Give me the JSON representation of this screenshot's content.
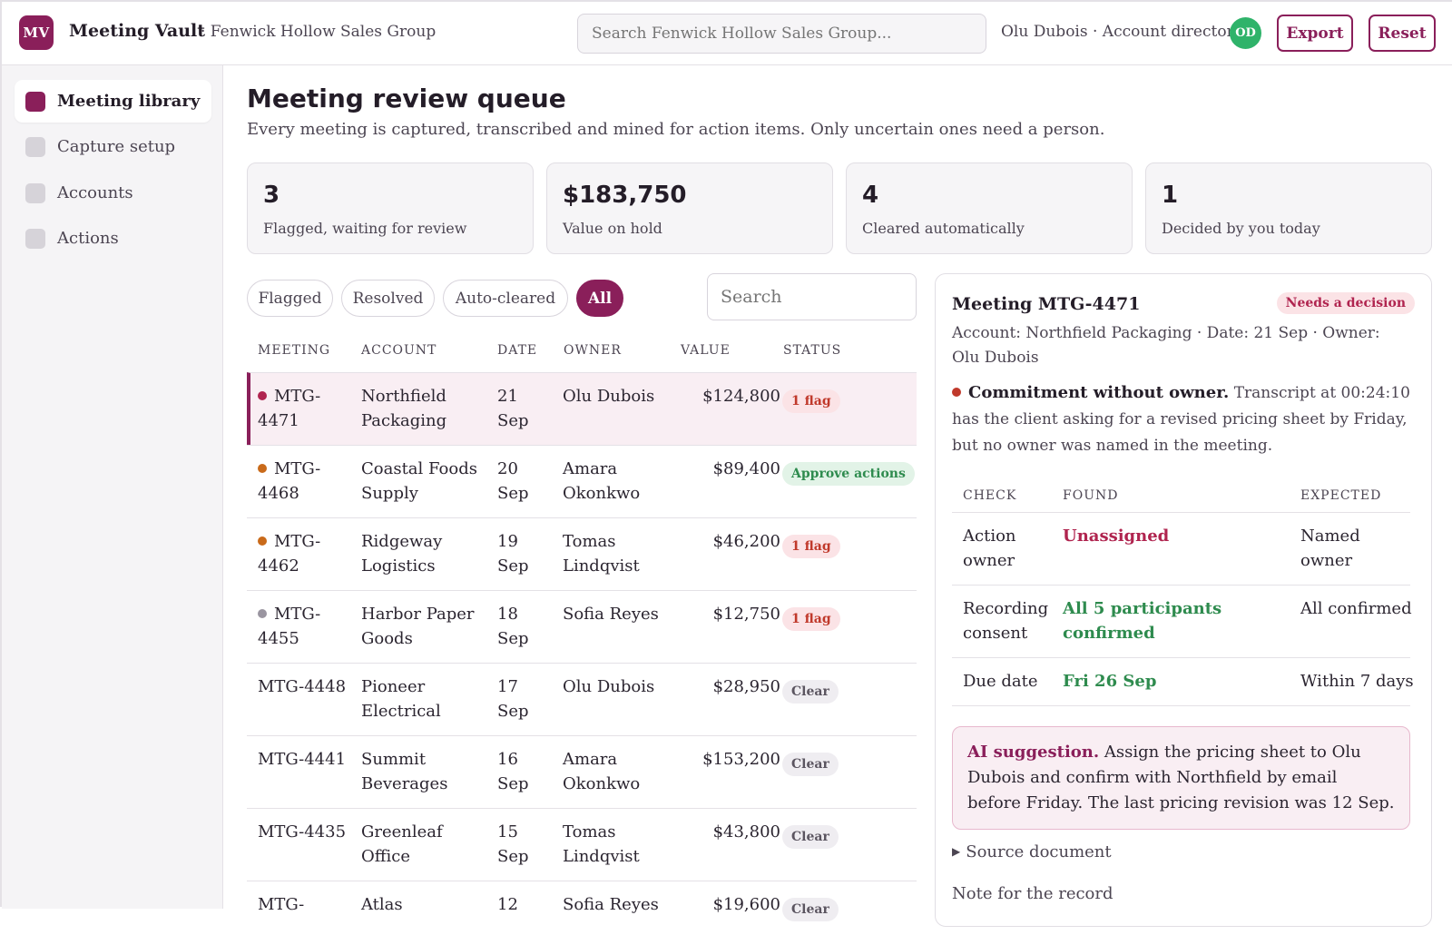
{
  "header": {
    "logo_text": "MV",
    "app_name": "Meeting Vault",
    "org_name": "· Fenwick Hollow Sales Group",
    "search_placeholder": "Search Fenwick Hollow Sales Group...",
    "user_label": "Olu Dubois · Account director",
    "avatar_initials": "OD",
    "export_label": "Export",
    "reset_label": "Reset"
  },
  "sidebar": {
    "items": [
      {
        "label": "Meeting library",
        "active": true
      },
      {
        "label": "Capture setup",
        "active": false
      },
      {
        "label": "Accounts",
        "active": false
      },
      {
        "label": "Actions",
        "active": false
      }
    ]
  },
  "main": {
    "title": "Meeting review queue",
    "subtitle": "Every meeting is captured, transcribed and mined for action items. Only uncertain ones need a person.",
    "stats": [
      {
        "value": "3",
        "label": "Flagged, waiting for review"
      },
      {
        "value": "$183,750",
        "label": "Value on hold"
      },
      {
        "value": "4",
        "label": "Cleared automatically"
      },
      {
        "value": "1",
        "label": "Decided by you today"
      }
    ],
    "filters": [
      {
        "label": "Flagged",
        "active": false
      },
      {
        "label": "Resolved",
        "active": false
      },
      {
        "label": "Auto-cleared",
        "active": false
      },
      {
        "label": "All",
        "active": true
      }
    ],
    "search_placeholder": "Search",
    "table": {
      "columns": [
        "MEETING",
        "ACCOUNT",
        "DATE",
        "OWNER",
        "VALUE",
        "STATUS"
      ],
      "rows": [
        {
          "meeting": "MTG-4471",
          "account": "Northfield Packaging",
          "date": "21 Sep",
          "owner": "Olu Dubois",
          "value": "$124,800",
          "status": "1 flag",
          "status_kind": "flag",
          "dot": "#b0244f",
          "selected": true
        },
        {
          "meeting": "MTG-4468",
          "account": "Coastal Foods Supply",
          "date": "20 Sep",
          "owner": "Amara Okonkwo",
          "value": "$89,400",
          "status": "Approve actions",
          "status_kind": "approve",
          "dot": "#c96a1a",
          "selected": false
        },
        {
          "meeting": "MTG-4462",
          "account": "Ridgeway Logistics",
          "date": "19 Sep",
          "owner": "Tomas Lindqvist",
          "value": "$46,200",
          "status": "1 flag",
          "status_kind": "flag",
          "dot": "#c96a1a",
          "selected": false
        },
        {
          "meeting": "MTG-4455",
          "account": "Harbor Paper Goods",
          "date": "18 Sep",
          "owner": "Sofia Reyes",
          "value": "$12,750",
          "status": "1 flag",
          "status_kind": "flag",
          "dot": "#9a95a0",
          "selected": false
        },
        {
          "meeting": "MTG-4448",
          "account": "Pioneer Electrical",
          "date": "17 Sep",
          "owner": "Olu Dubois",
          "value": "$28,950",
          "status": "Clear",
          "status_kind": "clear",
          "dot": "",
          "selected": false
        },
        {
          "meeting": "MTG-4441",
          "account": "Summit Beverages",
          "date": "16 Sep",
          "owner": "Amara Okonkwo",
          "value": "$153,200",
          "status": "Clear",
          "status_kind": "clear",
          "dot": "",
          "selected": false
        },
        {
          "meeting": "MTG-4435",
          "account": "Greenleaf Office",
          "date": "15 Sep",
          "owner": "Tomas Lindqvist",
          "value": "$43,800",
          "status": "Clear",
          "status_kind": "clear",
          "dot": "",
          "selected": false
        },
        {
          "meeting": "MTG-",
          "account": "Atlas",
          "date": "12",
          "owner": "Sofia Reyes",
          "value": "$19,600",
          "status": "Clear",
          "status_kind": "clear",
          "dot": "",
          "selected": false
        }
      ]
    }
  },
  "detail": {
    "title": "Meeting MTG-4471",
    "badge": "Needs a decision",
    "meta": "Account: Northfield Packaging · Date: 21 Sep · Owner: Olu Dubois",
    "issue_title": "Commitment without owner.",
    "issue_text": "Transcript at 00:24:10 has the client asking for a revised pricing sheet by Friday, but no owner was named in the meeting.",
    "checks": {
      "columns": [
        "CHECK",
        "FOUND",
        "EXPECTED"
      ],
      "rows": [
        {
          "check": "Action owner",
          "found": "Unassigned",
          "found_kind": "bad",
          "expected": "Named owner"
        },
        {
          "check": "Recording consent",
          "found": "All 5 participants confirmed",
          "found_kind": "good",
          "expected": "All confirmed"
        },
        {
          "check": "Due date",
          "found": "Fri 26 Sep",
          "found_kind": "good",
          "expected": "Within 7 days"
        }
      ]
    },
    "ai_title": "AI suggestion.",
    "ai_text": "Assign the pricing sheet to Olu Dubois and confirm with Northfield by email before Friday. The last pricing revision was 12 Sep.",
    "source_label": "Source document",
    "note_label": "Note for the record"
  },
  "colors": {
    "accent": "#8a1f5a",
    "flag": "#c0392b",
    "good": "#2e8b4e"
  }
}
